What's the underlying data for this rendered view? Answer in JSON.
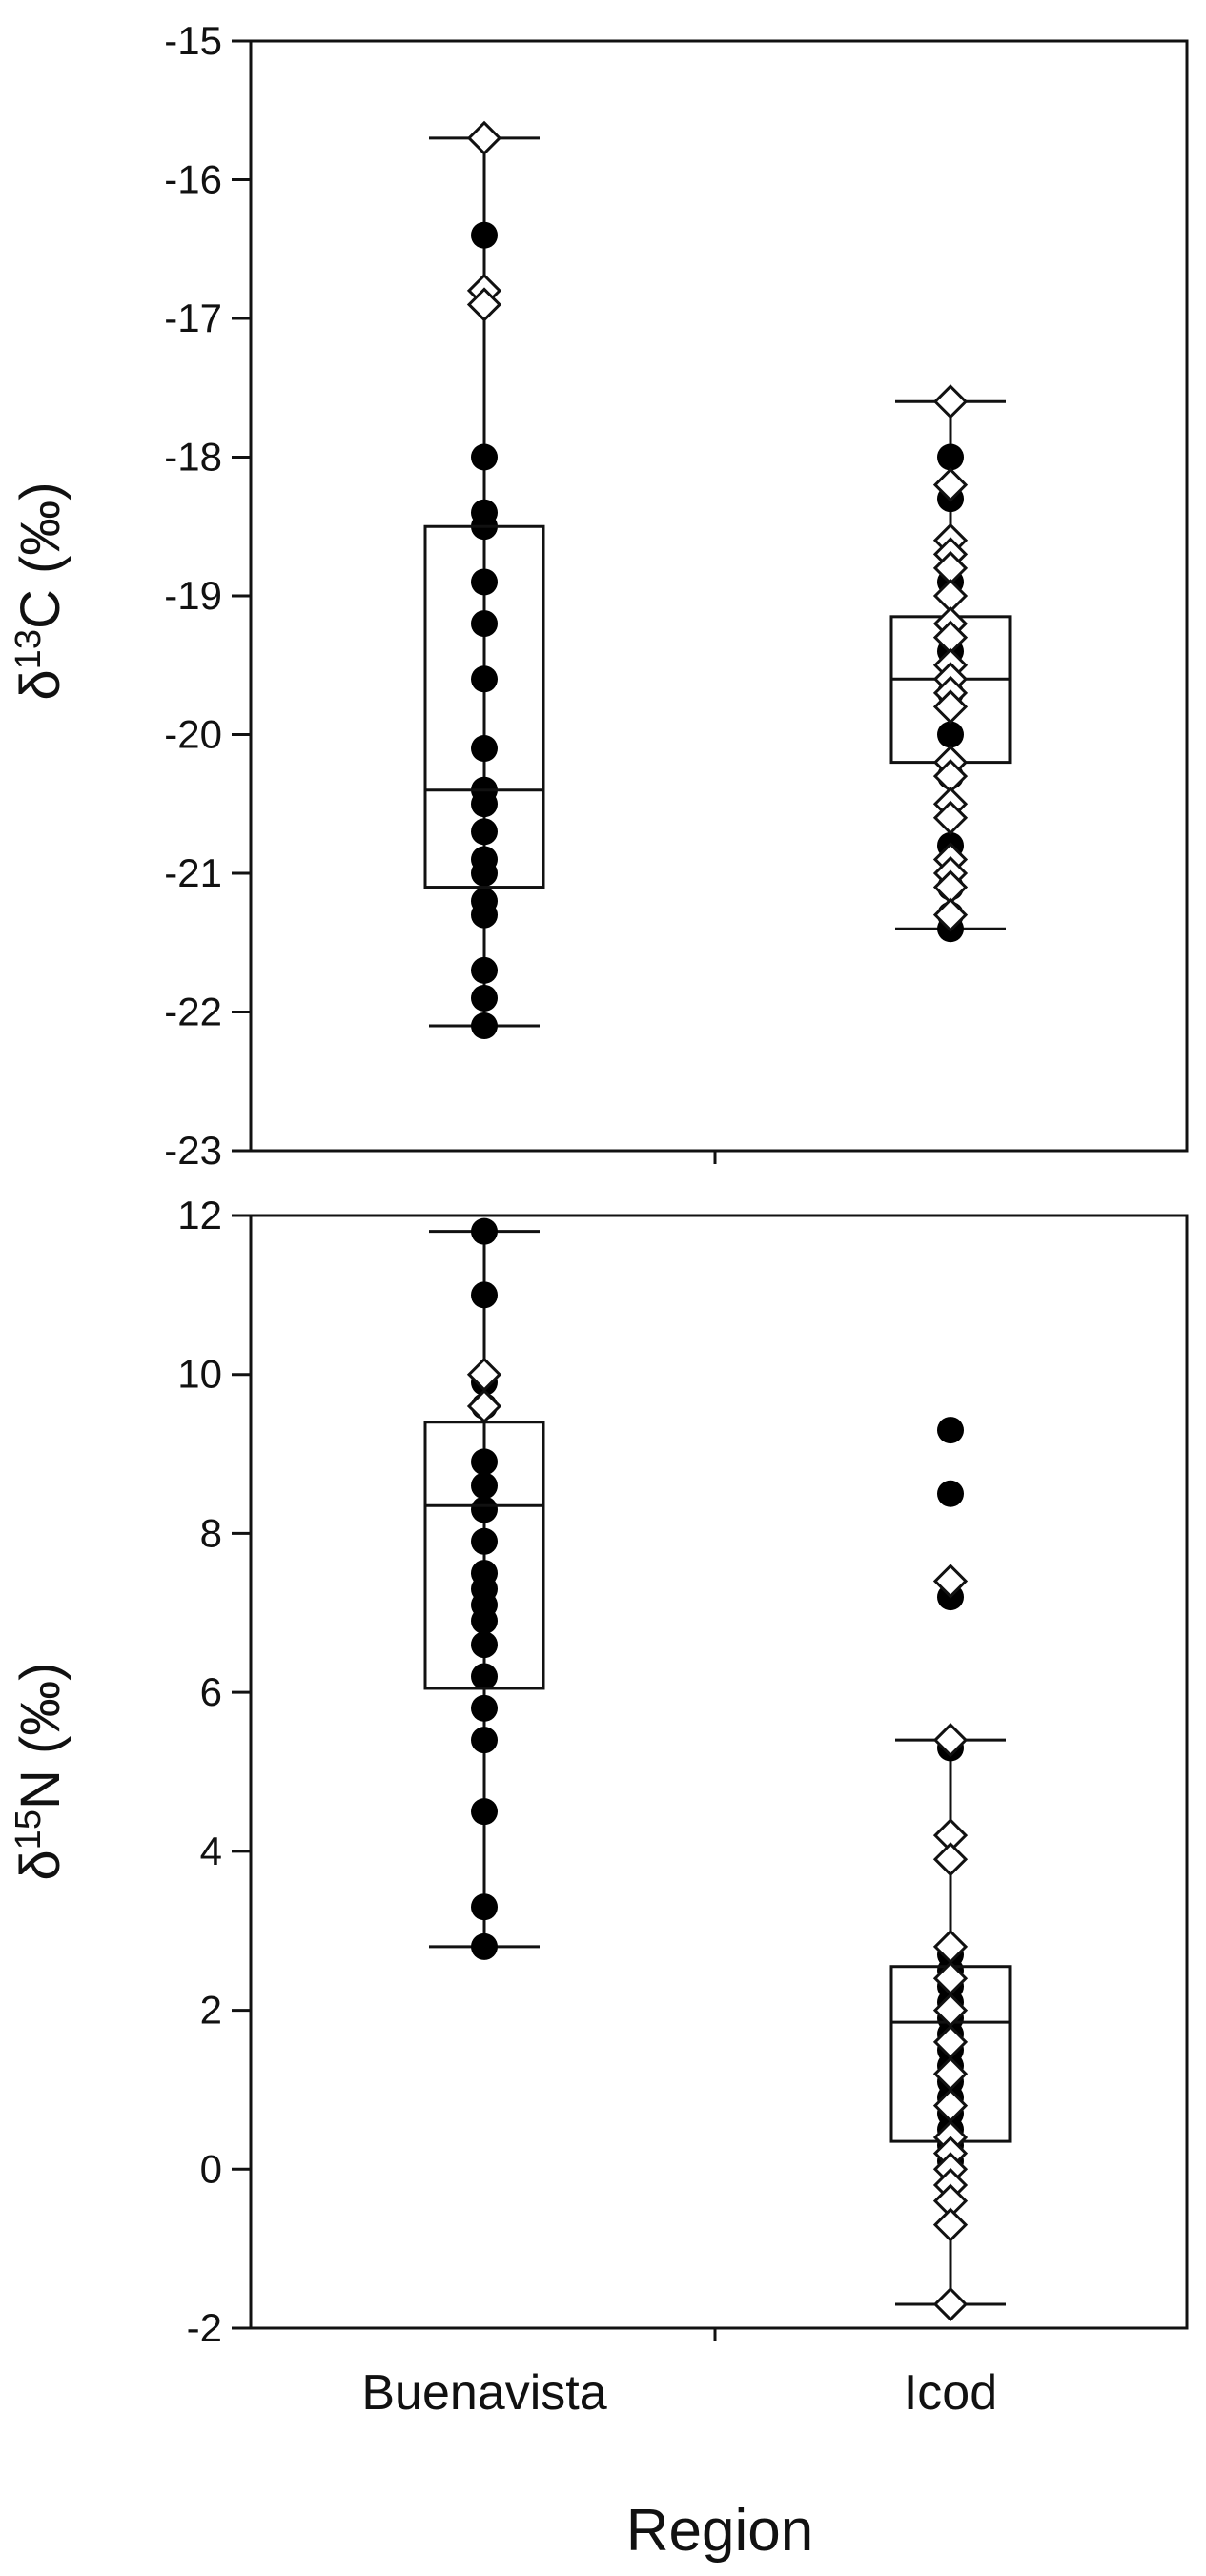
{
  "chart_data": [
    {
      "type": "box",
      "panel": "top",
      "ylabel_symbol": "δ",
      "ylabel_sup": "13",
      "ylabel_rest": "C (‰)",
      "ylim": [
        -23,
        -15
      ],
      "yticks": [
        -15,
        -16,
        -17,
        -18,
        -19,
        -20,
        -21,
        -22,
        -23
      ],
      "categories": [
        "Buenavista",
        "Icod"
      ],
      "boxes": [
        {
          "category": "Buenavista",
          "q1": -21.1,
          "median": -20.4,
          "q3": -18.5,
          "whisker_low": -22.1,
          "whisker_high": -15.7
        },
        {
          "category": "Icod",
          "q1": -20.2,
          "median": -19.6,
          "q3": -19.15,
          "whisker_low": -21.4,
          "whisker_high": -17.6
        }
      ],
      "points": {
        "Buenavista": {
          "filled": [
            -16.4,
            -18.0,
            -18.4,
            -18.5,
            -18.9,
            -19.2,
            -19.6,
            -20.1,
            -20.4,
            -20.5,
            -20.7,
            -20.9,
            -21.0,
            -21.2,
            -21.3,
            -21.7,
            -21.9,
            -22.1
          ],
          "open": [
            -15.7,
            -16.8,
            -16.9
          ]
        },
        "Icod": {
          "filled": [
            -18.0,
            -18.3,
            -18.9,
            -19.4,
            -19.7,
            -20.0,
            -20.3,
            -20.8,
            -21.1,
            -21.3,
            -21.4
          ],
          "open": [
            -17.6,
            -18.2,
            -18.6,
            -18.7,
            -18.8,
            -19.0,
            -19.2,
            -19.3,
            -19.5,
            -19.6,
            -19.7,
            -19.8,
            -20.2,
            -20.3,
            -20.5,
            -20.6,
            -20.9,
            -21.0,
            -21.1,
            -21.3
          ]
        }
      }
    },
    {
      "type": "box",
      "panel": "bottom",
      "ylabel_symbol": "δ",
      "ylabel_sup": "15",
      "ylabel_rest": "N (‰)",
      "ylim": [
        -2,
        12
      ],
      "yticks": [
        12,
        10,
        8,
        6,
        4,
        2,
        0,
        -2
      ],
      "categories": [
        "Buenavista",
        "Icod"
      ],
      "xlabel": "Region",
      "boxes": [
        {
          "category": "Buenavista",
          "q1": 6.05,
          "median": 8.35,
          "q3": 9.4,
          "whisker_low": 2.8,
          "whisker_high": 11.8
        },
        {
          "category": "Icod",
          "q1": 0.35,
          "median": 1.85,
          "q3": 2.55,
          "whisker_low": -1.7,
          "whisker_high": 5.4
        }
      ],
      "points": {
        "Buenavista": {
          "filled": [
            11.8,
            11.0,
            9.9,
            9.6,
            8.9,
            8.6,
            8.3,
            7.9,
            7.5,
            7.3,
            7.1,
            6.9,
            6.6,
            6.2,
            5.8,
            5.4,
            4.5,
            3.3,
            2.8
          ],
          "open": [
            10.0,
            9.6
          ]
        },
        "Icod": {
          "filled": [
            9.3,
            8.5,
            7.2,
            5.3,
            2.7,
            2.5,
            2.3,
            2.1,
            1.9,
            1.7,
            1.5,
            1.3,
            1.1,
            0.9,
            0.7,
            0.5,
            0.3,
            0.1
          ],
          "open": [
            7.4,
            5.4,
            4.2,
            3.9,
            2.8,
            2.4,
            2.0,
            1.6,
            1.2,
            0.8,
            0.4,
            0.2,
            0.0,
            -0.2,
            -0.4,
            -0.7,
            -1.7
          ]
        }
      }
    }
  ]
}
